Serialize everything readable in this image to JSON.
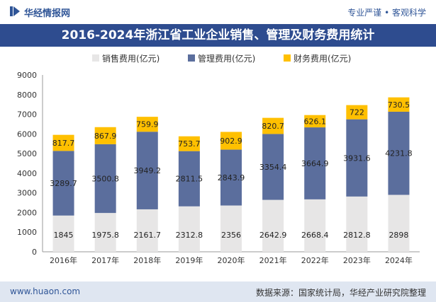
{
  "header": {
    "brand": "华经情报网",
    "slogan": "专业严谨 • 客观科学"
  },
  "footer": {
    "site": "www.huaon.com",
    "source": "数据来源：国家统计局，华经产业研究院整理"
  },
  "colors": {
    "title_bg": "#2e4c8f",
    "sales": "#e7e6e6",
    "admin": "#5b6e9d",
    "finance": "#ffc000"
  },
  "chart_data": {
    "type": "bar",
    "stacked": true,
    "title": "2016-2024年浙江省工业企业销售、管理及财务费用统计",
    "categories": [
      "2016年",
      "2017年",
      "2018年",
      "2019年",
      "2020年",
      "2021年",
      "2022年",
      "2023年",
      "2024年"
    ],
    "series": [
      {
        "name": "销售费用(亿元)",
        "values": [
          1845,
          1975.8,
          2161.7,
          2312.8,
          2356,
          2642.9,
          2668.4,
          2812.8,
          2898
        ],
        "labels": [
          "1845",
          "1975.8",
          "2161.7",
          "2312.8",
          "2356",
          "2642.9",
          "2668.4",
          "2812.8",
          "2898"
        ],
        "color": "#e7e6e6"
      },
      {
        "name": "管理费用(亿元)",
        "values": [
          3289.7,
          3500.8,
          3949.2,
          2811.5,
          2843.9,
          3354.4,
          3664.9,
          3931.6,
          4231.8
        ],
        "labels": [
          "3289.7",
          "3500.8",
          "3949.2",
          "2811.5",
          "2843.9",
          "3354.4",
          "3664.9",
          "3931.6",
          "4231.8"
        ],
        "color": "#5b6e9d"
      },
      {
        "name": "财务费用(亿元)",
        "values": [
          817.7,
          867.9,
          759.9,
          753.7,
          902.9,
          820.7,
          626.1,
          722,
          730.5
        ],
        "labels": [
          "817.7",
          "867.9",
          "759.9",
          "753.7",
          "902.9",
          "820.7",
          "626.1",
          "722",
          "730.5"
        ],
        "color": "#ffc000"
      }
    ],
    "ylim": [
      0,
      9000
    ],
    "yticks": [
      0,
      1000,
      2000,
      3000,
      4000,
      5000,
      6000,
      7000,
      8000,
      9000
    ],
    "legend": "top",
    "grid": false
  }
}
